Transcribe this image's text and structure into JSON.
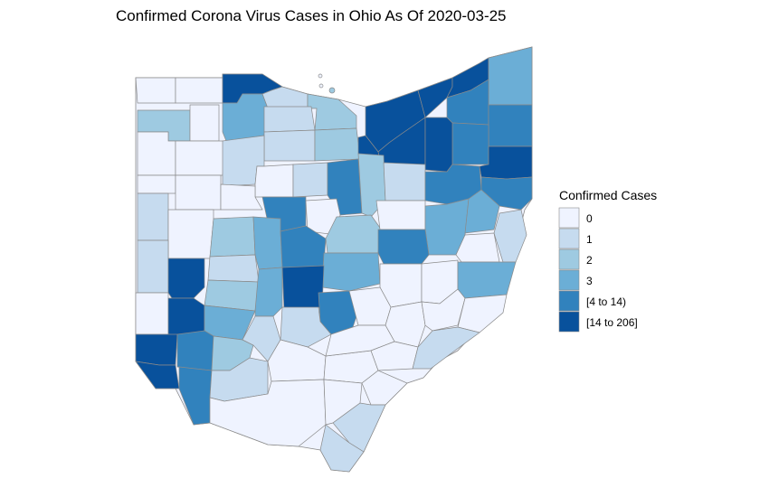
{
  "chart_data": {
    "type": "choropleth",
    "title": "Confirmed Corona Virus Cases in Ohio As Of 2020-03-25",
    "legend": {
      "title": "Confirmed Cases",
      "placement": "right",
      "bins": [
        {
          "label": "0",
          "color": "#eff3ff"
        },
        {
          "label": "1",
          "color": "#c6dbef"
        },
        {
          "label": "2",
          "color": "#9ecae1"
        },
        {
          "label": "3",
          "color": "#6baed6"
        },
        {
          "label": "[4 to 14)",
          "color": "#3182bd"
        },
        {
          "label": "[14 to 206]",
          "color": "#08519c"
        }
      ]
    },
    "region": "Ohio counties",
    "category_counts": {
      "0": 33,
      "1": 16,
      "2": 9,
      "3": 9,
      "[4 to 14)": 12,
      "[14 to 206]": 9
    }
  }
}
